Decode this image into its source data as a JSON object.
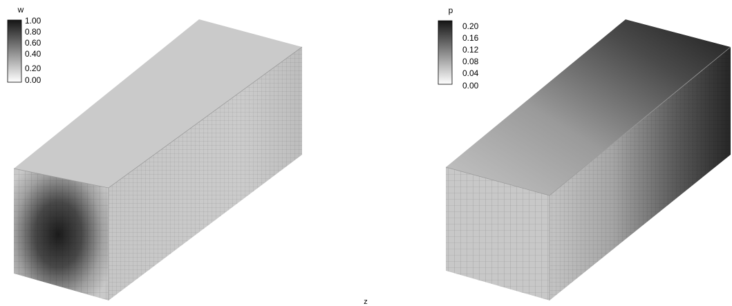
{
  "left_panel": {
    "legend": {
      "variable": "w",
      "ticks": [
        "1.00",
        "0.80",
        "0.60",
        "0.40",
        "0.20",
        "0.00"
      ]
    }
  },
  "right_panel": {
    "legend": {
      "variable": "p",
      "ticks": [
        "0.20",
        "0.16",
        "0.12",
        "0.08",
        "0.04",
        "0.00"
      ]
    }
  },
  "axis_label": "z",
  "colors": {
    "max": "#151515",
    "min": "#ffffff",
    "body": "#c9c9c9",
    "mesh": "#8a8a8a"
  }
}
